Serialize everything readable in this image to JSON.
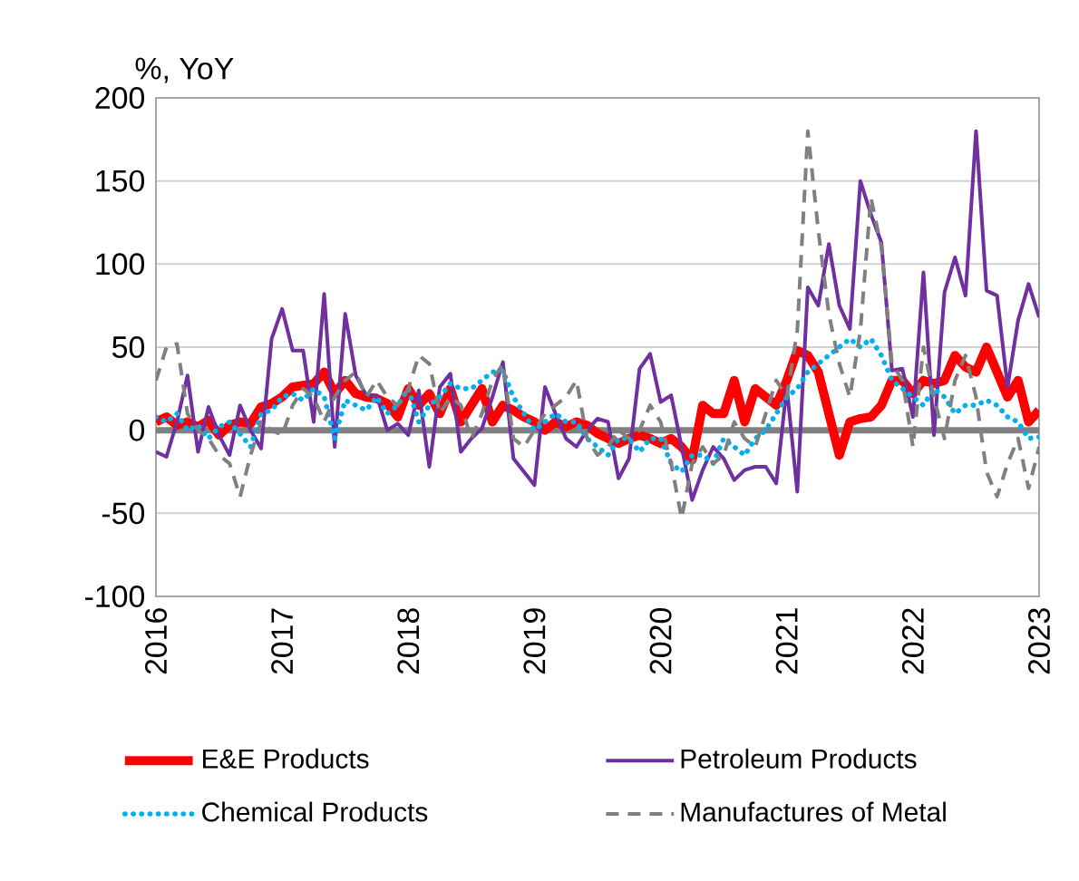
{
  "chart_data": {
    "type": "line",
    "ylabel": "%, YoY",
    "x": [
      "2016-01",
      "2016-02",
      "2016-03",
      "2016-04",
      "2016-05",
      "2016-06",
      "2016-07",
      "2016-08",
      "2016-09",
      "2016-10",
      "2016-11",
      "2016-12",
      "2017-01",
      "2017-02",
      "2017-03",
      "2017-04",
      "2017-05",
      "2017-06",
      "2017-07",
      "2017-08",
      "2017-09",
      "2017-10",
      "2017-11",
      "2017-12",
      "2018-01",
      "2018-02",
      "2018-03",
      "2018-04",
      "2018-05",
      "2018-06",
      "2018-07",
      "2018-08",
      "2018-09",
      "2018-10",
      "2018-11",
      "2018-12",
      "2019-01",
      "2019-02",
      "2019-03",
      "2019-04",
      "2019-05",
      "2019-06",
      "2019-07",
      "2019-08",
      "2019-09",
      "2019-10",
      "2019-11",
      "2019-12",
      "2020-01",
      "2020-02",
      "2020-03",
      "2020-04",
      "2020-05",
      "2020-06",
      "2020-07",
      "2020-08",
      "2020-09",
      "2020-10",
      "2020-11",
      "2020-12",
      "2021-01",
      "2021-02",
      "2021-03",
      "2021-04",
      "2021-05",
      "2021-06",
      "2021-07",
      "2021-08",
      "2021-09",
      "2021-10",
      "2021-11",
      "2021-12",
      "2022-01",
      "2022-02",
      "2022-03",
      "2022-04",
      "2022-05",
      "2022-06",
      "2022-07",
      "2022-08",
      "2022-09",
      "2022-10",
      "2022-11",
      "2022-12",
      "2023-01"
    ],
    "series": [
      {
        "name": "E&E Products",
        "color": "#ff0000",
        "line_style": "solid",
        "values": [
          5,
          8,
          3,
          5,
          2,
          6,
          -3,
          3,
          5,
          4,
          14,
          16,
          20,
          26,
          27,
          28,
          35,
          22,
          30,
          22,
          20,
          19,
          16,
          8,
          25,
          15,
          22,
          10,
          25,
          5,
          15,
          25,
          5,
          15,
          12,
          8,
          5,
          0,
          5,
          2,
          5,
          3,
          -2,
          -5,
          -8,
          -5,
          -3,
          -5,
          -8,
          -5,
          -10,
          -18,
          15,
          10,
          10,
          30,
          5,
          25,
          20,
          15,
          30,
          48,
          45,
          35,
          10,
          -15,
          5,
          7,
          8,
          15,
          30,
          30,
          22,
          30,
          28,
          30,
          45,
          38,
          35,
          50,
          35,
          20,
          30,
          5,
          12
        ]
      },
      {
        "name": "Petroleum Products",
        "color": "#7030a0",
        "line_style": "solid",
        "values": [
          -13,
          -16,
          5,
          33,
          -13,
          14,
          -3,
          -15,
          15,
          0,
          -11,
          55,
          73,
          48,
          48,
          5,
          82,
          -10,
          70,
          33,
          21,
          21,
          0,
          4,
          -3,
          24,
          -22,
          26,
          34,
          -13,
          -5,
          1,
          20,
          41,
          -17,
          -25,
          -33,
          26,
          10,
          -5,
          -10,
          0,
          7,
          5,
          -29,
          -17,
          37,
          46,
          17,
          21,
          -10,
          -42,
          -24,
          -10,
          -17,
          -30,
          -24,
          -22,
          -22,
          -32,
          26,
          -37,
          86,
          75,
          112,
          75,
          61,
          150,
          130,
          113,
          36,
          37,
          8,
          95,
          -3,
          83,
          104,
          81,
          180,
          84,
          81,
          26,
          66,
          88,
          68
        ]
      },
      {
        "name": "Chemical Products",
        "color": "#00b0f0",
        "line_style": "dotted",
        "values": [
          8,
          5,
          10,
          0,
          3,
          -5,
          2,
          5,
          -2,
          -10,
          10,
          12,
          20,
          22,
          18,
          25,
          20,
          -5,
          18,
          15,
          12,
          20,
          10,
          15,
          25,
          5,
          15,
          20,
          28,
          25,
          25,
          30,
          35,
          36,
          20,
          10,
          0,
          5,
          10,
          5,
          5,
          -5,
          -10,
          -15,
          -5,
          -5,
          -13,
          -5,
          -5,
          -20,
          -25,
          -15,
          -15,
          -20,
          -5,
          -10,
          -15,
          -5,
          0,
          10,
          20,
          25,
          35,
          40,
          45,
          50,
          55,
          50,
          55,
          45,
          30,
          25,
          20,
          15,
          25,
          20,
          10,
          15,
          15,
          18,
          15,
          8,
          5,
          -5,
          -4
        ]
      },
      {
        "name": "Manufactures of Metal",
        "color": "#808080",
        "line_style": "dashed",
        "values": [
          30,
          50,
          52,
          10,
          0,
          -5,
          -15,
          -20,
          -40,
          -15,
          5,
          0,
          -3,
          15,
          25,
          20,
          5,
          20,
          30,
          35,
          20,
          30,
          20,
          15,
          25,
          45,
          40,
          10,
          20,
          15,
          -5,
          10,
          30,
          40,
          -5,
          -10,
          0,
          10,
          15,
          20,
          30,
          -5,
          -15,
          -10,
          0,
          -5,
          0,
          15,
          5,
          -20,
          -53,
          -20,
          -10,
          -20,
          -15,
          5,
          -5,
          -10,
          10,
          30,
          20,
          60,
          180,
          120,
          70,
          40,
          20,
          60,
          140,
          110,
          40,
          30,
          -10,
          50,
          20,
          -5,
          30,
          45,
          20,
          -25,
          -40,
          -20,
          -5,
          -35,
          -10
        ]
      }
    ],
    "xlim": [
      "2016",
      "2023"
    ],
    "xticks": [
      "2016",
      "2017",
      "2018",
      "2019",
      "2020",
      "2021",
      "2022",
      "2023"
    ],
    "ylim": [
      -100,
      200
    ],
    "yticks": [
      -100,
      -50,
      0,
      50,
      100,
      150,
      200
    ],
    "ref_lines": [
      {
        "axis": "y",
        "value": 0,
        "color": "#808080"
      }
    ],
    "grid": "y",
    "legend": "bottom"
  }
}
